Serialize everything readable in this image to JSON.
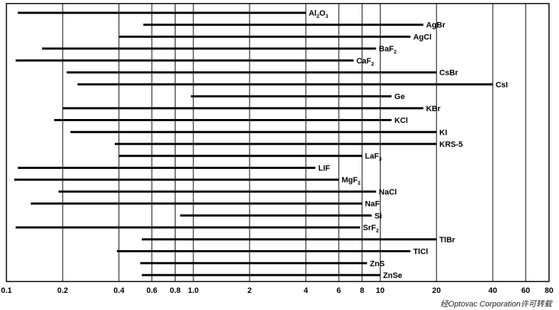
{
  "chart_data": {
    "type": "range-bar",
    "title": "",
    "xlabel": "",
    "ylabel": "",
    "x_scale": "log",
    "xlim": [
      0.1,
      80
    ],
    "grid": true,
    "x_ticks": [
      0.1,
      0.2,
      0.4,
      0.6,
      0.8,
      1.0,
      2,
      4,
      6,
      8,
      10,
      20,
      40,
      60,
      80
    ],
    "x_tick_labels": [
      "0.1",
      "0.2",
      "0.4",
      "0.6",
      "0.8",
      "1.0",
      "2",
      "4",
      "6",
      "8",
      "10",
      "20",
      "40",
      "60",
      "80"
    ],
    "materials": [
      {
        "name": "Al",
        "sub1": "2",
        "mid": "O",
        "sub2": "3",
        "start": 0.115,
        "end": 4.0
      },
      {
        "name": "AgBr",
        "start": 0.54,
        "end": 17
      },
      {
        "name": "AgCl",
        "start": 0.4,
        "end": 14.5
      },
      {
        "name": "BaF",
        "sub1": "2",
        "start": 0.155,
        "end": 9.5
      },
      {
        "name": "CaF",
        "sub1": "2",
        "start": 0.112,
        "end": 7.2
      },
      {
        "name": "CsBr",
        "start": 0.21,
        "end": 20
      },
      {
        "name": "CsI",
        "start": 0.24,
        "end": 40
      },
      {
        "name": "Ge",
        "start": 0.97,
        "end": 11.5
      },
      {
        "name": "KBr",
        "start": 0.2,
        "end": 17
      },
      {
        "name": "KCl",
        "start": 0.18,
        "end": 11.5
      },
      {
        "name": "KI",
        "start": 0.22,
        "end": 20
      },
      {
        "name": "KRS-5",
        "start": 0.38,
        "end": 20
      },
      {
        "name": "LaF",
        "sub1": "3",
        "start": 0.4,
        "end": 8
      },
      {
        "name": "LIF",
        "start": 0.115,
        "end": 4.5
      },
      {
        "name": "MgF",
        "sub1": "2",
        "start": 0.11,
        "end": 6
      },
      {
        "name": "NaCl",
        "start": 0.19,
        "end": 9.5
      },
      {
        "name": "NaF",
        "start": 0.135,
        "end": 8
      },
      {
        "name": "Si",
        "start": 0.85,
        "end": 9.0
      },
      {
        "name": "SrF",
        "sub1": "2",
        "start": 0.112,
        "end": 7.8
      },
      {
        "name": "TlBr",
        "start": 0.53,
        "end": 20
      },
      {
        "name": "TlCl",
        "start": 0.39,
        "end": 14.5
      },
      {
        "name": "ZnS",
        "start": 0.52,
        "end": 8.5
      },
      {
        "name": "ZnSe",
        "start": 0.53,
        "end": 10
      }
    ]
  },
  "credit": "经Optovac Corporation许可转载"
}
